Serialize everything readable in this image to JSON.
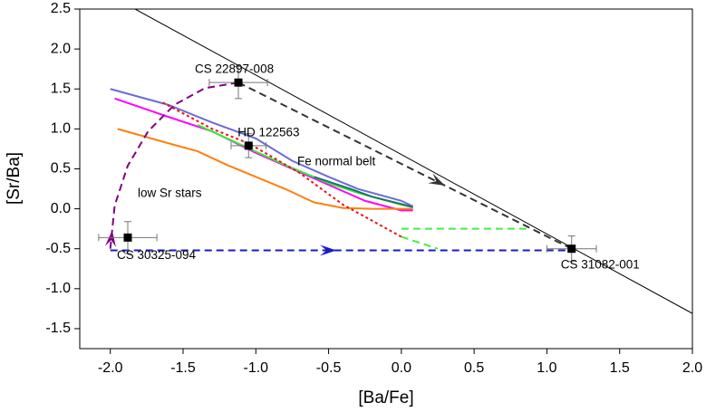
{
  "chart_data": {
    "type": "line",
    "x_label": "[Ba/Fe]",
    "y_label": "[Sr/Ba]",
    "xlim": [
      -2.21,
      2.0
    ],
    "ylim": [
      -1.75,
      2.5
    ],
    "xticks": [
      {
        "value": -2.0,
        "label": "-2.0"
      },
      -1.5,
      {
        "value": -1.0,
        "label": "-1.0"
      },
      -0.5,
      {
        "value": 0.0,
        "label": "0.0"
      },
      0.5,
      {
        "value": 1.0,
        "label": "1.0"
      },
      1.5,
      {
        "value": 2.0,
        "label": "2.0"
      }
    ],
    "yticks": [
      2.5,
      {
        "value": 2.0,
        "label": "2.0"
      },
      1.5,
      {
        "value": 1.0,
        "label": "1.0"
      },
      0.5,
      {
        "value": 0.0,
        "label": "0.0"
      },
      -0.5,
      {
        "value": -1.0,
        "label": "-1.0"
      },
      -1.5
    ],
    "series": [
      {
        "color": "#000000",
        "dash": "solid",
        "width": 1,
        "x": [
          -1.83,
          2.0
        ],
        "y": [
          2.5,
          -1.31
        ]
      },
      {
        "color": "#6b6bd6",
        "dash": "solid",
        "width": 2,
        "x": [
          -2.0,
          -1.6,
          -1.3,
          -1.0,
          -0.75,
          -0.5,
          -0.3,
          0.0,
          0.08
        ],
        "y": [
          1.5,
          1.3,
          1.08,
          0.88,
          0.6,
          0.4,
          0.25,
          0.1,
          0.03
        ]
      },
      {
        "color": "#ff00ff",
        "dash": "solid",
        "width": 2,
        "x": [
          -1.97,
          -1.6,
          -1.3,
          -1.0,
          -0.75,
          -0.5,
          -0.25,
          0.0,
          0.08
        ],
        "y": [
          1.38,
          1.15,
          0.97,
          0.7,
          0.5,
          0.3,
          0.1,
          -0.02,
          -0.02
        ]
      },
      {
        "color": "#ff7f0e",
        "dash": "solid",
        "width": 2,
        "x": [
          -1.95,
          -1.6,
          -1.4,
          -1.2,
          -1.0,
          -0.8,
          -0.6,
          -0.4,
          -0.2,
          0.08
        ],
        "y": [
          1.0,
          0.82,
          0.72,
          0.55,
          0.4,
          0.25,
          0.08,
          0.01,
          0.0,
          0.0
        ]
      },
      {
        "color": "#33ee33",
        "dash": "solid",
        "width": 2,
        "x": [
          -1.4,
          -1.1,
          -0.8,
          -0.5,
          -0.3,
          0.0,
          0.08
        ],
        "y": [
          1.05,
          0.8,
          0.55,
          0.32,
          0.2,
          0.05,
          0.02
        ]
      },
      {
        "color": "#1f6f6f",
        "dash": "solid",
        "width": 2,
        "x": [
          -0.6,
          -0.35,
          -0.2,
          0.0,
          0.08
        ],
        "y": [
          0.4,
          0.25,
          0.15,
          0.06,
          0.02
        ]
      },
      {
        "color": "#ee1111",
        "dash": "dotted",
        "width": 2,
        "x": [
          -1.64,
          -1.3,
          -1.05,
          -0.7,
          -0.4,
          -0.2,
          0.0
        ],
        "y": [
          1.33,
          1.0,
          0.82,
          0.45,
          0.05,
          -0.15,
          -0.35
        ]
      },
      {
        "color": "#44ee44",
        "dash": "dashed",
        "width": 2,
        "x": [
          0.0,
          0.86
        ],
        "y": [
          -0.25,
          -0.25
        ]
      },
      {
        "color": "#44ee44",
        "dash": "dashed",
        "width": 2,
        "x": [
          0.0,
          0.25
        ],
        "y": [
          -0.35,
          -0.5
        ]
      },
      {
        "color": "#800080",
        "dash": "dashed",
        "width": 2,
        "arrow": true,
        "x": [
          -2.0,
          -1.97,
          -1.88,
          -1.74,
          -1.56,
          -1.35,
          -1.12
        ],
        "y": [
          -0.5,
          0.04,
          0.54,
          0.97,
          1.3,
          1.51,
          1.58
        ]
      },
      {
        "color": "#1a1acc",
        "dash": "dashed",
        "width": 2,
        "arrow": true,
        "x": [
          -2.0,
          1.17
        ],
        "y": [
          -0.52,
          -0.52
        ]
      },
      {
        "color": "#333333",
        "dash": "dashed",
        "width": 2,
        "arrow": true,
        "x": [
          -1.12,
          1.17
        ],
        "y": [
          1.58,
          -0.5
        ]
      }
    ],
    "points": [
      {
        "label": "CS 22897-008",
        "x": -1.12,
        "y": 1.58,
        "xerr": 0.2,
        "yerr": 0.2
      },
      {
        "label": "HD 122563",
        "x": -1.05,
        "y": 0.79,
        "xerr": 0.12,
        "yerr": 0.15
      },
      {
        "label": "CS 30325-094",
        "x": -1.88,
        "y": -0.36,
        "xerr": 0.2,
        "yerr": 0.2
      },
      {
        "label": "CS 31082-001",
        "x": 1.17,
        "y": -0.5,
        "xerr": 0.17,
        "yerr": 0.16
      }
    ],
    "annotations": [
      "low Sr stars",
      "Fe normal belt"
    ]
  }
}
